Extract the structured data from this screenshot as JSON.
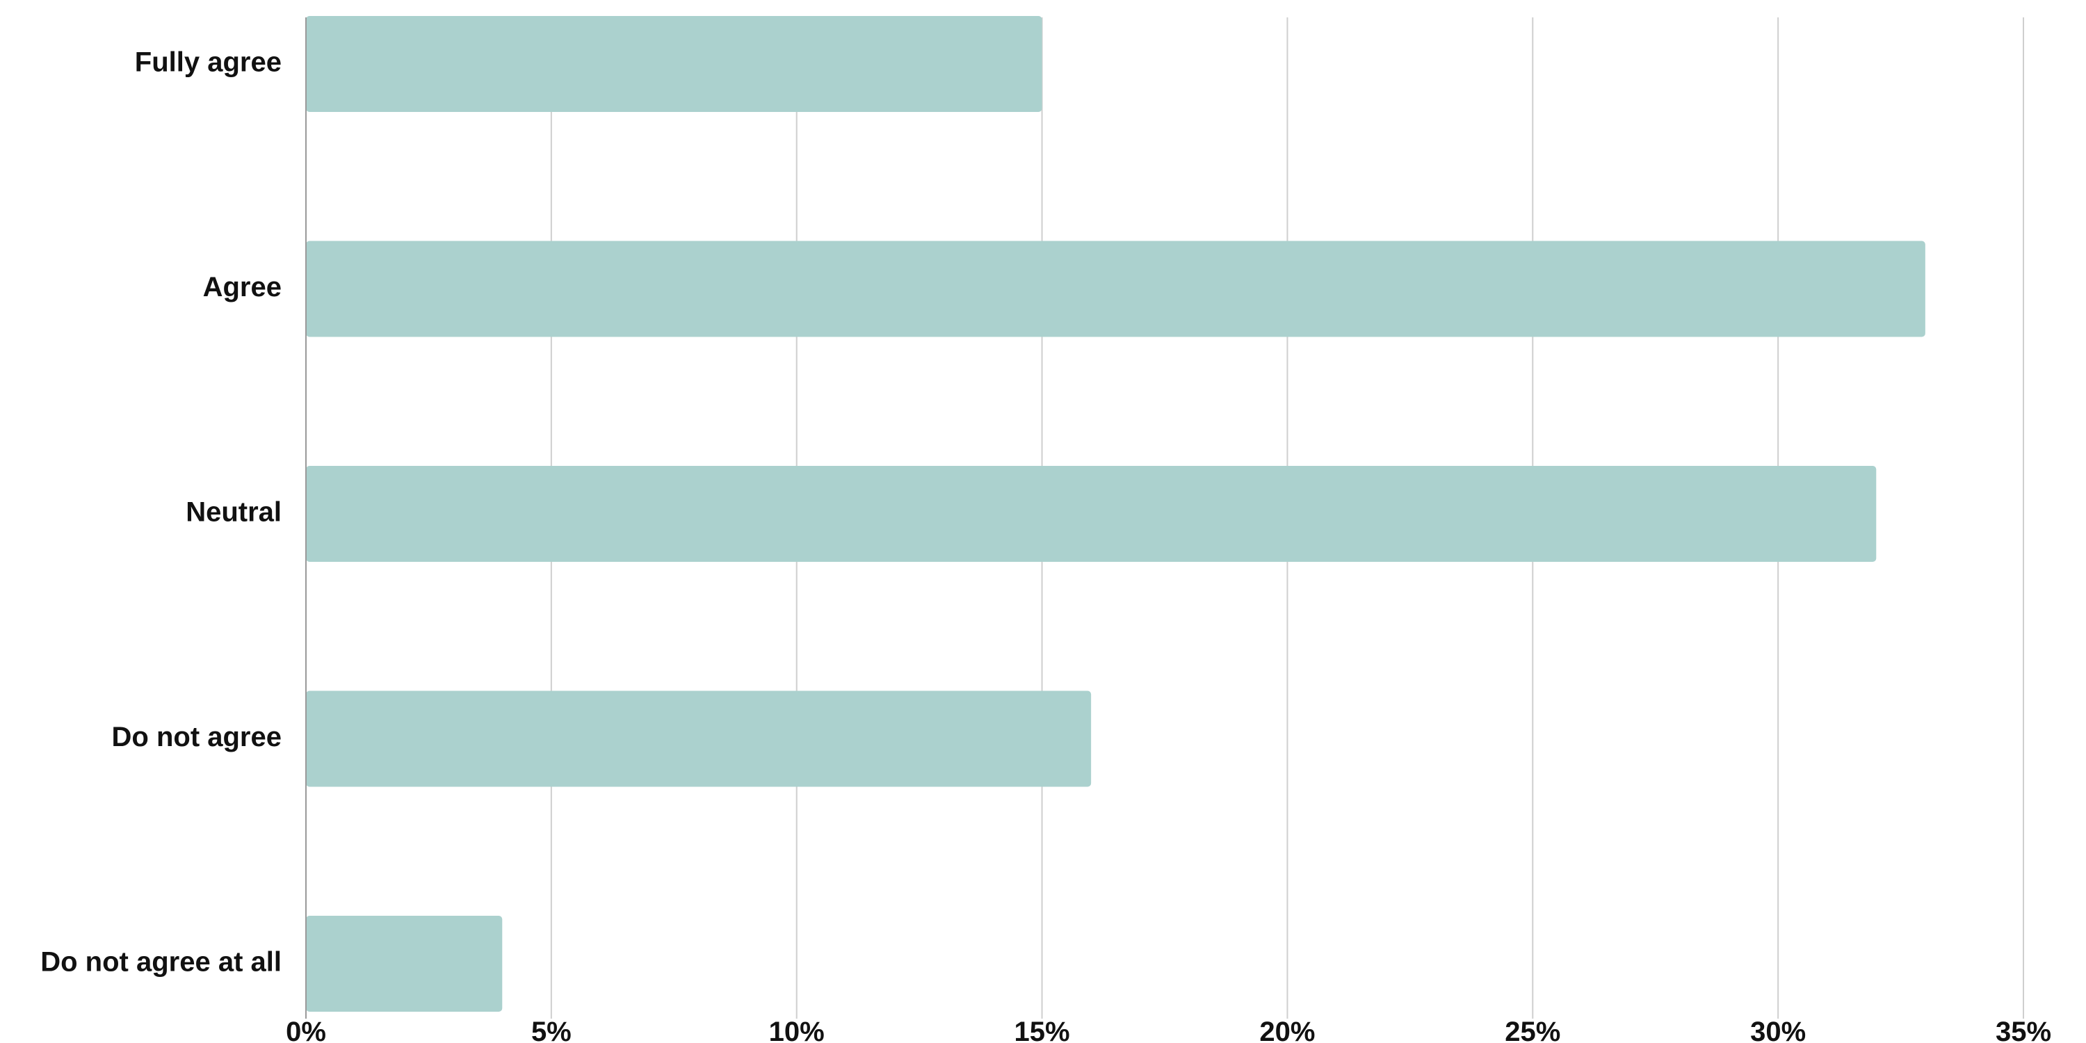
{
  "chart_data": {
    "type": "bar",
    "orientation": "horizontal",
    "categories": [
      "Fully agree",
      "Agree",
      "Neutral",
      "Do not agree",
      "Do not agree at all"
    ],
    "values": [
      15,
      33,
      32,
      16,
      4
    ],
    "xlim": [
      0,
      35
    ],
    "xticks": [
      0,
      5,
      10,
      15,
      20,
      25,
      30,
      35
    ],
    "xtick_labels": [
      "0%",
      "5%",
      "10%",
      "15%",
      "20%",
      "25%",
      "30%",
      "35%"
    ],
    "title": "",
    "xlabel": "",
    "ylabel": "",
    "grid": "vertical",
    "legend": "none",
    "colors": {
      "bar": "#abd1ce",
      "grid": "#cfcfcf",
      "axis": "#9a9a9a",
      "text": "#111111"
    }
  }
}
